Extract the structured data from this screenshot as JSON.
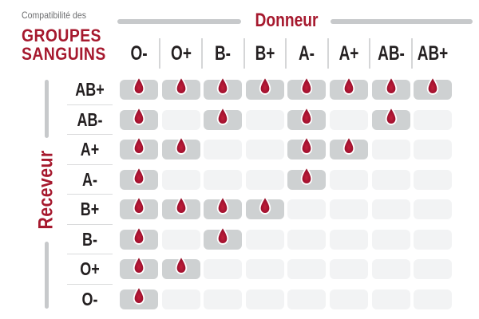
{
  "title": {
    "eyebrow": "Compatibilité des",
    "line1": "GROUPES",
    "line2": "SANGUINS"
  },
  "axes": {
    "donor": "Donneur",
    "receiver": "Receveur"
  },
  "donors": [
    "O-",
    "O+",
    "B-",
    "B+",
    "A-",
    "A+",
    "AB-",
    "AB+"
  ],
  "receivers": [
    "AB+",
    "AB-",
    "A+",
    "A-",
    "B+",
    "B-",
    "O+",
    "O-"
  ],
  "compatibility": [
    {
      "receiver": "AB+",
      "compatible_donors": [
        "O-",
        "O+",
        "B-",
        "B+",
        "A-",
        "A+",
        "AB-",
        "AB+"
      ]
    },
    {
      "receiver": "AB-",
      "compatible_donors": [
        "O-",
        "B-",
        "A-",
        "AB-"
      ]
    },
    {
      "receiver": "A+",
      "compatible_donors": [
        "O-",
        "O+",
        "A-",
        "A+"
      ]
    },
    {
      "receiver": "A-",
      "compatible_donors": [
        "O-",
        "A-"
      ]
    },
    {
      "receiver": "B+",
      "compatible_donors": [
        "O-",
        "O+",
        "B-",
        "B+"
      ]
    },
    {
      "receiver": "B-",
      "compatible_donors": [
        "O-",
        "B-"
      ]
    },
    {
      "receiver": "O+",
      "compatible_donors": [
        "O-",
        "O+"
      ]
    },
    {
      "receiver": "O-",
      "compatible_donors": [
        "O-"
      ]
    }
  ],
  "icons": {
    "compatible_marker": "blood-drop-icon"
  },
  "colors": {
    "brand_red": "#a6192e",
    "text_dark": "#231f20",
    "text_gray": "#6d6e70",
    "bar_gray": "#c7c9cb",
    "cell_compatible": "#ced1d2",
    "cell_incompatible": "#f2f3f4",
    "separator": "#d5d6d7",
    "drop_center": "#c0203a",
    "drop_mid": "#a41230",
    "drop_edge": "#8c0c22",
    "drop_outline": "#ffffff"
  }
}
